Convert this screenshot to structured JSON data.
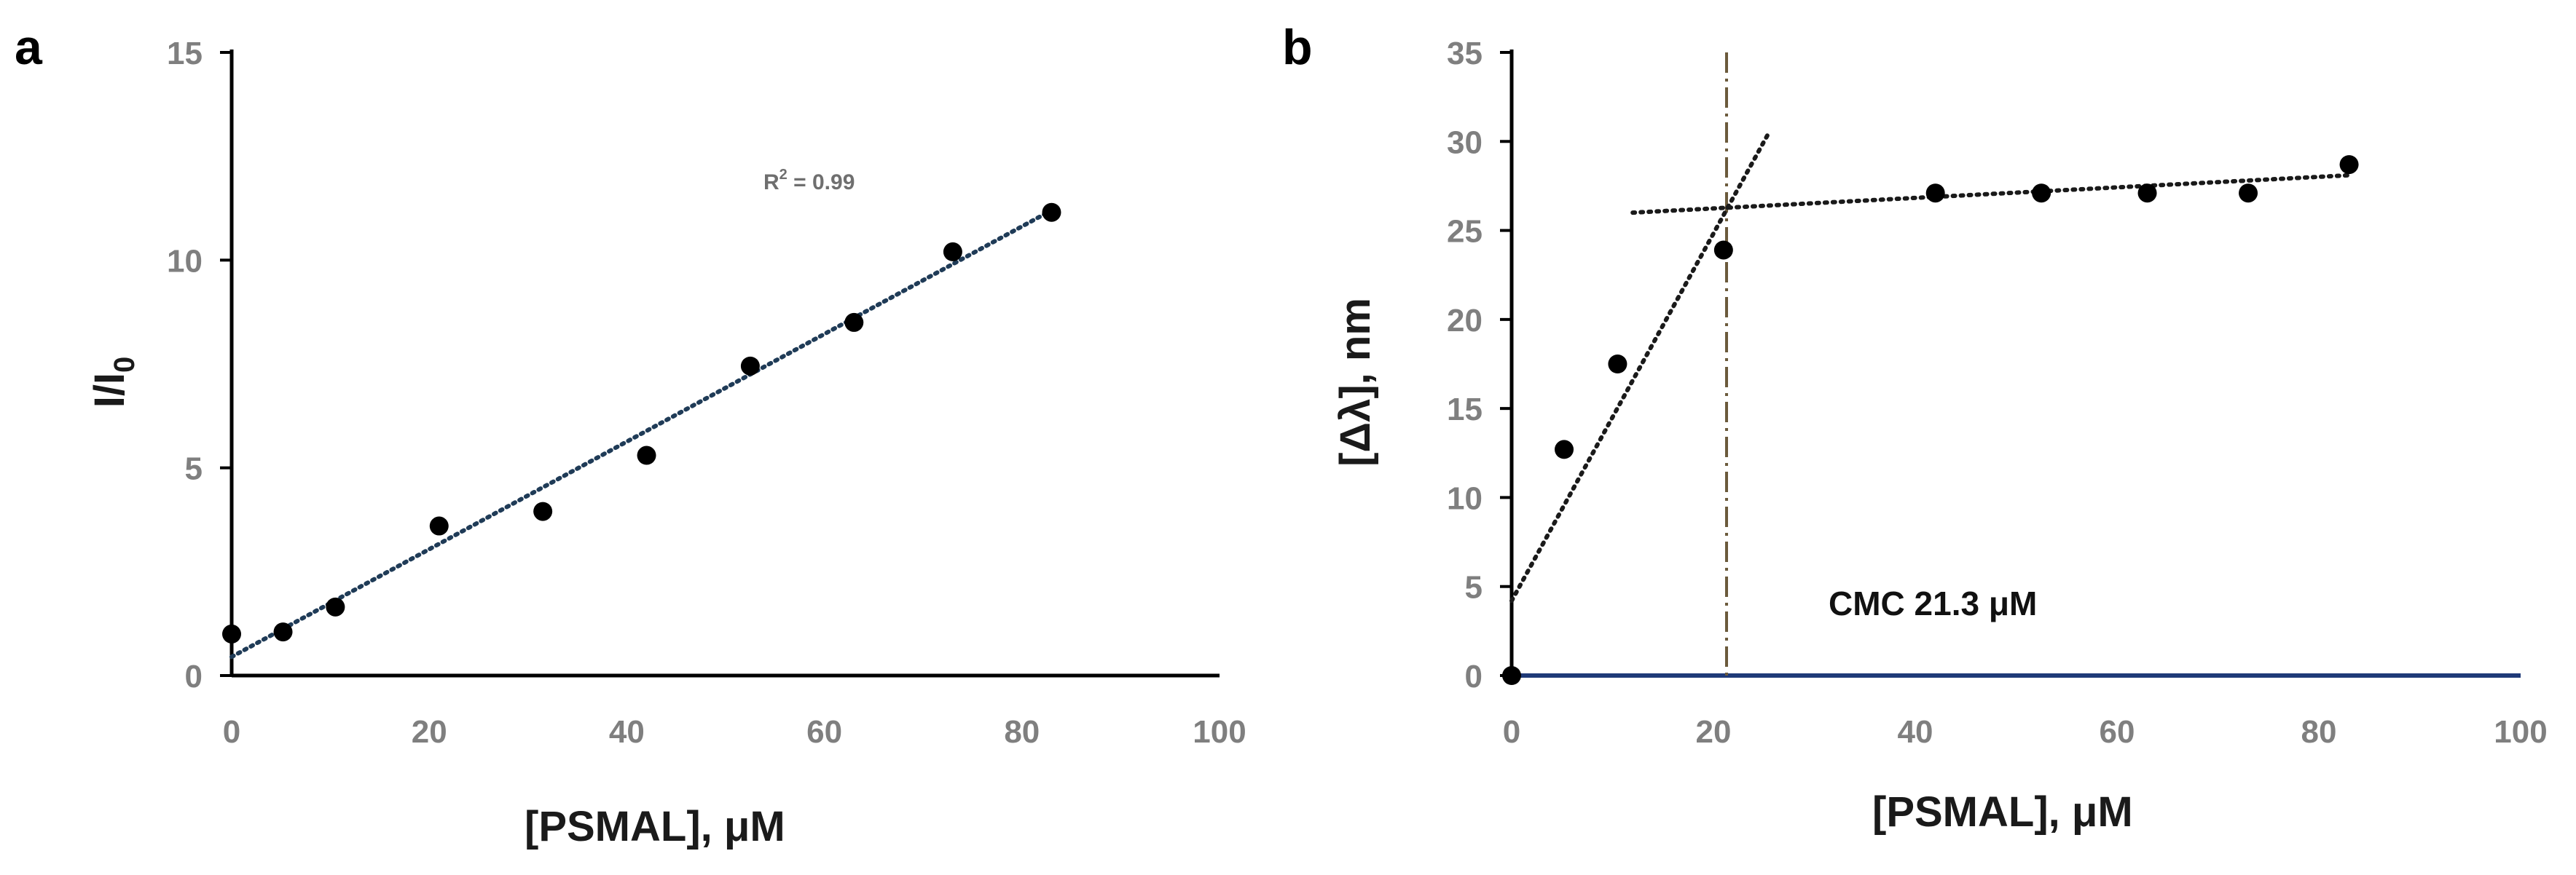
{
  "chart_data": [
    {
      "panel": "a",
      "type": "scatter",
      "title": "",
      "xlabel": "[PSMAL],  μM",
      "ylabel_main": "I/I",
      "ylabel_sub": "0",
      "xlim": [
        0,
        100
      ],
      "ylim": [
        0,
        15
      ],
      "xticks": [
        0,
        20,
        40,
        60,
        80,
        100
      ],
      "yticks": [
        0,
        5,
        10,
        15
      ],
      "x": [
        0,
        5.2,
        10.5,
        21,
        31.5,
        42,
        52.5,
        63,
        73,
        83
      ],
      "y": [
        1.0,
        1.05,
        1.65,
        3.6,
        3.95,
        5.3,
        7.45,
        8.5,
        10.2,
        11.15
      ],
      "trendline": {
        "x": [
          0,
          83
        ],
        "y": [
          0.45,
          11.2
        ]
      },
      "annotation": {
        "r2_prefix": "R",
        "r2_sup": "2",
        "r2_text": " = 0.99"
      }
    },
    {
      "panel": "b",
      "type": "scatter",
      "title": "",
      "xlabel": "[PSMAL],  μM",
      "ylabel": "[Δλ], nm",
      "xlim": [
        0,
        100
      ],
      "ylim": [
        0,
        35
      ],
      "xticks": [
        0,
        20,
        40,
        60,
        80,
        100
      ],
      "yticks": [
        0,
        5,
        10,
        15,
        20,
        25,
        30,
        35
      ],
      "x": [
        0,
        5.2,
        10.5,
        21,
        42,
        52.5,
        63,
        73,
        83
      ],
      "y": [
        0,
        12.7,
        17.5,
        23.9,
        27.1,
        27.1,
        27.1,
        27.1,
        28.7
      ],
      "trendline_steep": {
        "x": [
          0,
          25.5
        ],
        "y": [
          4.2,
          30.5
        ]
      },
      "trendline_plateau": {
        "x": [
          12,
          83
        ],
        "y": [
          26.0,
          28.1
        ]
      },
      "cmc_x": 21.3,
      "annotation": {
        "cmc_label": "CMC 21.3 μM"
      }
    }
  ],
  "colors": {
    "axis": "#000000",
    "baseline_b": "#1f3a78",
    "trend_a": "#1f3b57",
    "trend_b": "#1a1a1a",
    "cmc_line": "#6b5a3c",
    "point": "#000000"
  }
}
